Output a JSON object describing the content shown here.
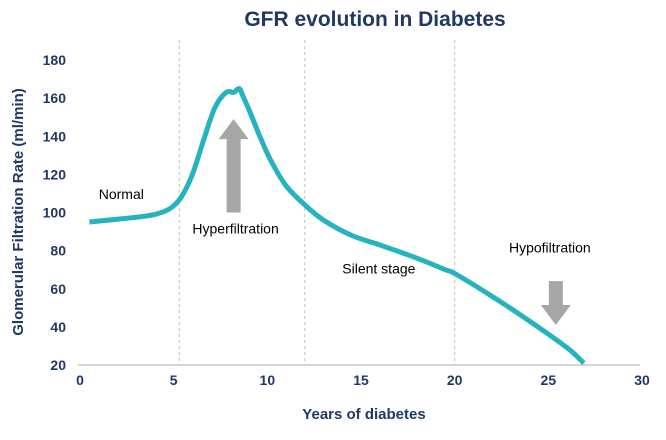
{
  "chart_data": {
    "type": "line",
    "title": "GFR evolution in Diabetes",
    "xlabel": "Years of diabetes",
    "ylabel": "Glomerular Filtration Rate (ml/min)",
    "xlim": [
      0,
      30
    ],
    "ylim": [
      20,
      180
    ],
    "xticks": [
      "0",
      "5",
      "10",
      "15",
      "20",
      "25",
      "30"
    ],
    "yticks": [
      "20",
      "40",
      "60",
      "80",
      "100",
      "120",
      "140",
      "160",
      "180"
    ],
    "grid": "vertical dashed separators at stage boundaries",
    "stage_boundaries": [
      5.3,
      12,
      20
    ],
    "series": [
      {
        "color": "#26b3c0",
        "x": [
          0.5,
          1.5,
          3,
          4,
          4.8,
          5.4,
          6,
          6.6,
          7.2,
          7.8,
          8.2,
          8.5,
          8.7,
          9.1,
          9.6,
          10.2,
          11,
          12,
          13,
          14.5,
          16,
          18,
          19.5,
          20,
          22,
          24,
          26,
          26.9
        ],
        "y": [
          95,
          96,
          97.5,
          99,
          102,
          108,
          120,
          138,
          155,
          163,
          163,
          165,
          161,
          152,
          140,
          127,
          114,
          104,
          96,
          88,
          83,
          76,
          70,
          68,
          56,
          43,
          29,
          21
        ]
      }
    ],
    "annotations": [
      {
        "text": "Normal",
        "x": 1,
        "y": 107
      },
      {
        "text": "Hyperfiltration",
        "x": 6,
        "y": 89
      },
      {
        "text": "Silent stage",
        "x": 14,
        "y": 68
      },
      {
        "text": "Hypofiltration",
        "x": 22.9,
        "y": 79
      }
    ],
    "arrows": [
      {
        "direction": "up",
        "x": 8.2,
        "y_from": 100,
        "y_to": 149,
        "color": "#a6a6a6"
      },
      {
        "direction": "down",
        "x": 25.4,
        "y_from": 64,
        "y_to": 41,
        "color": "#a6a6a6"
      }
    ]
  }
}
